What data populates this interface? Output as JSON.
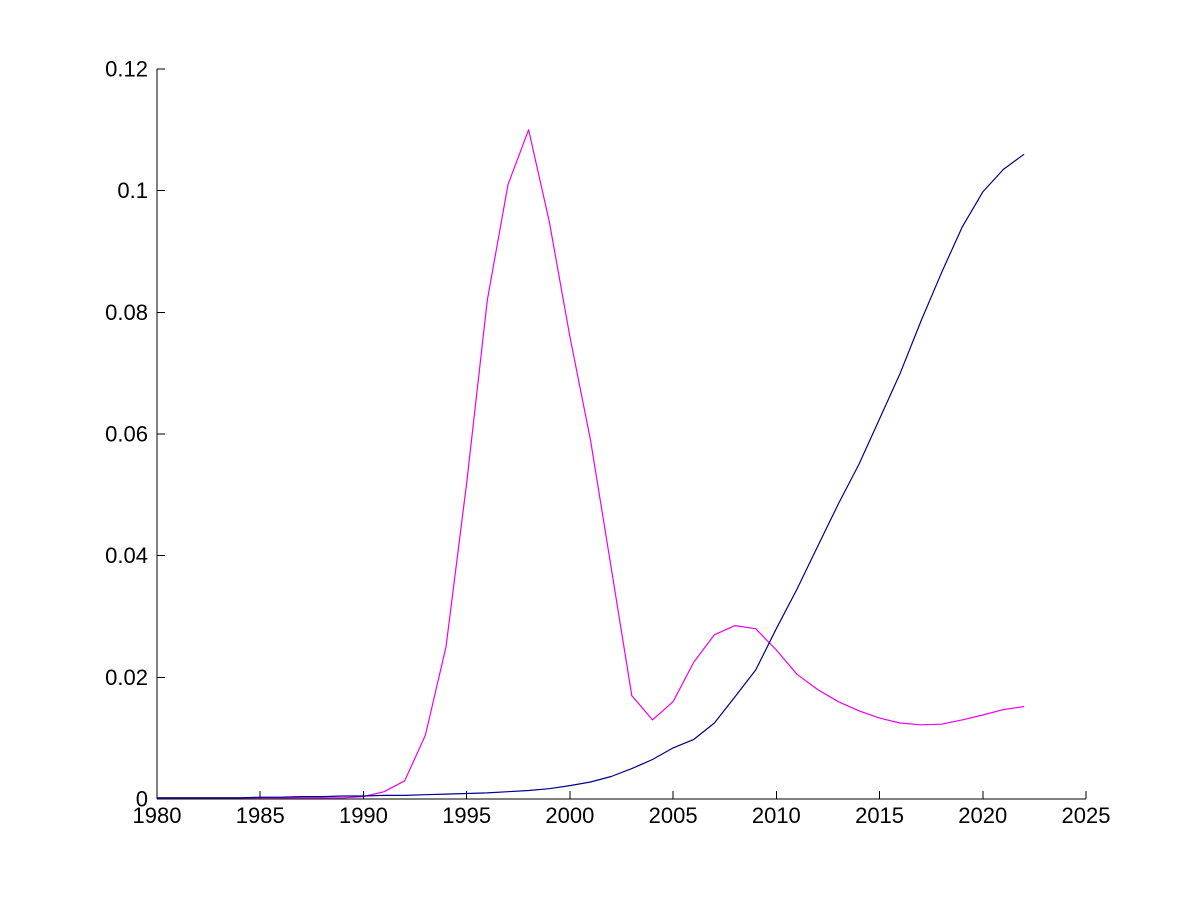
{
  "figure": {
    "background": "#ffffff",
    "axis_color": "#000000",
    "tick_direction": "in",
    "box": "off"
  },
  "chart_data": {
    "type": "line",
    "title": "",
    "xlabel": "",
    "ylabel": "",
    "grid": false,
    "legend": null,
    "xlim": [
      1980,
      2025
    ],
    "ylim": [
      0,
      0.12
    ],
    "x_ticks": [
      1980,
      1985,
      1990,
      1995,
      2000,
      2005,
      2010,
      2015,
      2020,
      2025
    ],
    "x_tick_labels": [
      "1980",
      "1985",
      "1990",
      "1995",
      "2000",
      "2005",
      "2010",
      "2015",
      "2020",
      "2025"
    ],
    "y_ticks": [
      0,
      0.02,
      0.04,
      0.06,
      0.08,
      0.1,
      0.12
    ],
    "y_tick_labels": [
      "0",
      "0.02",
      "0.04",
      "0.06",
      "0.08",
      "0.1",
      "0.12"
    ],
    "x": [
      1980,
      1981,
      1982,
      1983,
      1984,
      1985,
      1986,
      1987,
      1988,
      1989,
      1990,
      1991,
      1992,
      1993,
      1994,
      1995,
      1996,
      1997,
      1998,
      1999,
      2000,
      2001,
      2002,
      2003,
      2004,
      2005,
      2006,
      2007,
      2008,
      2009,
      2010,
      2011,
      2012,
      2013,
      2014,
      2015,
      2016,
      2017,
      2018,
      2019,
      2020,
      2021,
      2022
    ],
    "series": [
      {
        "name": "magenta-line",
        "color": "#EE00EE",
        "values": [
          0.0002,
          0.0002,
          0.0002,
          0.0002,
          0.0002,
          0.0002,
          0.0002,
          0.0002,
          0.0002,
          0.0002,
          0.0004,
          0.0012,
          0.003,
          0.0105,
          0.025,
          0.052,
          0.082,
          0.101,
          0.11,
          0.095,
          0.076,
          0.059,
          0.038,
          0.017,
          0.013,
          0.016,
          0.0225,
          0.027,
          0.0285,
          0.028,
          0.0245,
          0.0205,
          0.018,
          0.016,
          0.0145,
          0.0133,
          0.0125,
          0.0122,
          0.0123,
          0.013,
          0.0138,
          0.0147,
          0.0152
        ]
      },
      {
        "name": "dark-blue-line",
        "color": "#00008B",
        "values": [
          0.0002,
          0.0002,
          0.0002,
          0.0002,
          0.0002,
          0.0003,
          0.0003,
          0.0004,
          0.0004,
          0.0005,
          0.0005,
          0.0006,
          0.0006,
          0.0007,
          0.0008,
          0.0009,
          0.001,
          0.0012,
          0.0014,
          0.0017,
          0.0022,
          0.0028,
          0.0037,
          0.005,
          0.0065,
          0.0084,
          0.0098,
          0.0125,
          0.0168,
          0.0212,
          0.028,
          0.0345,
          0.0415,
          0.0485,
          0.055,
          0.0625,
          0.07,
          0.0785,
          0.0865,
          0.094,
          0.0998,
          0.1035,
          0.106
        ]
      }
    ]
  }
}
